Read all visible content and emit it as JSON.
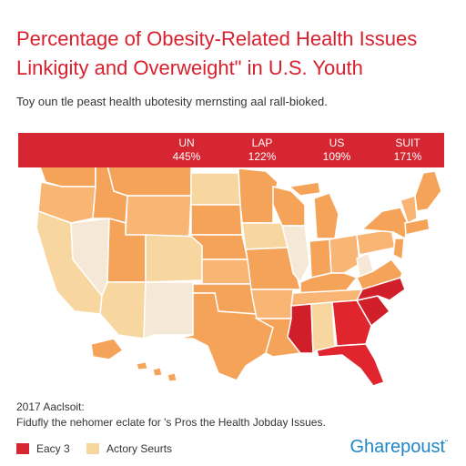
{
  "title_line1": "Percentage of Obesity-Related Health Issues",
  "title_line2": "Linkigity and Overweight\" in U.S. Youth",
  "subtitle": "Toy oun tle peast health ubotesity mernsting aal rall-bioked.",
  "stats": [
    {
      "label": "UN",
      "value": "445%"
    },
    {
      "label": "LAP",
      "value": "122%"
    },
    {
      "label": "US",
      "value": "109%"
    },
    {
      "label": "SUIT",
      "value": "171%"
    }
  ],
  "footer": {
    "year": "2017 Aaclsoit:",
    "note": "Fidufly the nehomer eclate for 's Pros the Health Jobday Issues."
  },
  "legend": [
    {
      "label": "Eacy 3",
      "color": "#d62631"
    },
    {
      "label": "Actory Seurts",
      "color": "#f7d79f"
    }
  ],
  "brand": "Gharepoust",
  "brand_mark": "“",
  "colors": {
    "accent": "#d62631",
    "orange": "#f6a35a",
    "orange_light": "#f8b574",
    "pale": "#f8d69f",
    "cream": "#f6e8d6",
    "red": "#e0252e",
    "red_dark": "#d11f2a",
    "brand": "#1f86c6"
  }
}
